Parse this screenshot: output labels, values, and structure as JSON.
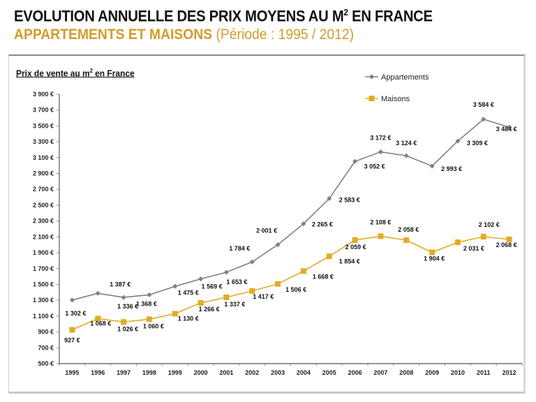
{
  "header": {
    "title_main": "EVOLUTION ANNUELLE DES PRIX MOYENS AU M",
    "title_sup": "2",
    "title_end": " EN FRANCE",
    "subtitle_bold": "APPARTEMENTS ET MAISONS",
    "subtitle_rest": " (Période : 1995 / 2012)"
  },
  "colors": {
    "appartements": "#8c7b78",
    "maisons": "#e2ab24",
    "subtitle": "#d39b2b"
  },
  "chart_data": {
    "type": "line",
    "title": "Prix de vente au m² en France",
    "title_parts": {
      "pre": "Prix de vente au m",
      "sup": "2",
      "post": " en France"
    },
    "xlabel": "",
    "ylabel": "",
    "categories": [
      "1995",
      "1996",
      "1997",
      "1998",
      "1999",
      "2000",
      "2001",
      "2002",
      "2003",
      "2004",
      "2005",
      "2006",
      "2007",
      "2008",
      "2009",
      "2010",
      "2011",
      "2012"
    ],
    "ylim": [
      500,
      3900
    ],
    "yticks": [
      500,
      700,
      900,
      1100,
      1300,
      1500,
      1700,
      1900,
      2100,
      2300,
      2500,
      2700,
      2900,
      3100,
      3300,
      3500,
      3700,
      3900
    ],
    "ytick_labels": [
      "500 €",
      "700 €",
      "900 €",
      "1 100 €",
      "1 300 €",
      "1 500 €",
      "1 700 €",
      "1 900 €",
      "2 100 €",
      "2 300 €",
      "2 500 €",
      "2 700 €",
      "2 900 €",
      "3 100 €",
      "3 300 €",
      "3 500 €",
      "3 700 €",
      "3 900 €"
    ],
    "grid": false,
    "legend_position": "top-right",
    "series": [
      {
        "name": "Appartements",
        "marker": "diamond",
        "values": [
          1302,
          1387,
          1336,
          1368,
          1475,
          1569,
          1653,
          1784,
          2001,
          2265,
          2583,
          3052,
          3172,
          3124,
          2993,
          3309,
          3584,
          3484
        ],
        "labels": [
          "1 302 €",
          "1 387 €",
          "1 336 €",
          "1 368 €",
          "1 475 €",
          "1 569 €",
          "1 653 €",
          "1 784 €",
          "2 001 €",
          "2 265 €",
          "2 583 €",
          "3 052 €",
          "3 172 €",
          "3 124 €",
          "2 993 €",
          "3 309 €",
          "3 584 €",
          "3 484 €"
        ]
      },
      {
        "name": "Maisons",
        "marker": "square",
        "values": [
          927,
          1068,
          1026,
          1060,
          1130,
          1266,
          1337,
          1417,
          1506,
          1668,
          1854,
          2059,
          2108,
          2058,
          1904,
          2031,
          2102,
          2068
        ],
        "labels": [
          "927 €",
          "1 068 €",
          "1 026 €",
          "1 060 €",
          "1 130 €",
          "1 266 €",
          "1 337 €",
          "1 417 €",
          "1 506 €",
          "1 668 €",
          "1 854 €",
          "2 059 €",
          "2 108 €",
          "2 058 €",
          "1 904 €",
          "2 031 €",
          "2 102 €",
          "2 068 €"
        ]
      }
    ]
  }
}
